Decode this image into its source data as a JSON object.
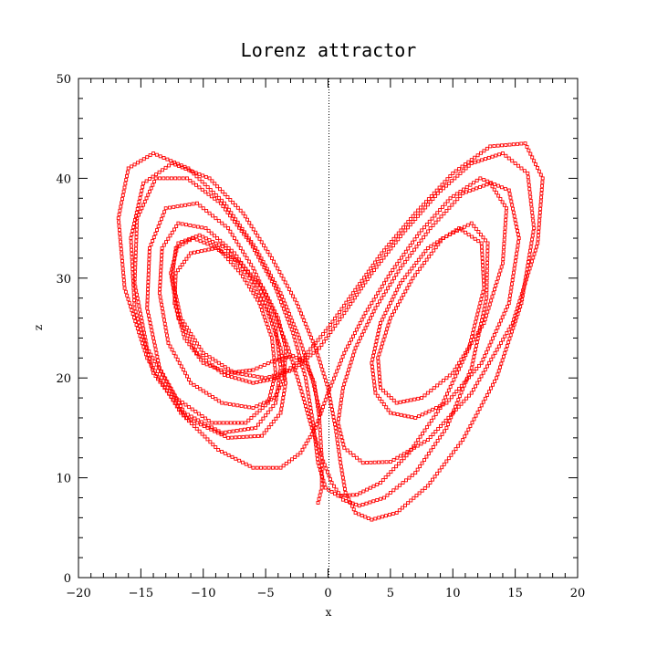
{
  "chart_data": {
    "type": "scatter",
    "title": "Lorenz attractor",
    "xlabel": "x",
    "ylabel": "z",
    "xlim": [
      -20,
      20
    ],
    "ylim": [
      0,
      50
    ],
    "xticks": [
      -20,
      -15,
      -10,
      -5,
      0,
      5,
      10,
      15,
      20
    ],
    "yticks": [
      0,
      10,
      20,
      30,
      40,
      50
    ],
    "xtick_labels": [
      "−20",
      "−15",
      "−10",
      "−5",
      "0",
      "5",
      "10",
      "15",
      "20"
    ],
    "ytick_labels": [
      "0",
      "10",
      "20",
      "30",
      "40",
      "50"
    ],
    "reference_line": {
      "x": 0,
      "style": "dotted"
    },
    "marker": "open-square",
    "color": "#ff0000",
    "grid": false,
    "series": [
      {
        "points": [
          [
            -0.8,
            7.5
          ],
          [
            -0.5,
            9
          ],
          [
            -0.5,
            12
          ],
          [
            -0.7,
            16
          ],
          [
            -1.1,
            19.5
          ],
          [
            -1.8,
            21.5
          ],
          [
            -2.8,
            22.2
          ],
          [
            -4.2,
            21.8
          ],
          [
            -6,
            20.8
          ],
          [
            -8,
            20.5
          ],
          [
            -10,
            21.5
          ],
          [
            -11.5,
            24
          ],
          [
            -12.3,
            27.5
          ],
          [
            -12.2,
            30.5
          ],
          [
            -11,
            32.5
          ],
          [
            -9,
            33
          ],
          [
            -7,
            31.5
          ],
          [
            -5.2,
            29
          ],
          [
            -4,
            26
          ],
          [
            -3.4,
            23
          ],
          [
            -3.5,
            20
          ],
          [
            -4.3,
            18
          ],
          [
            -6,
            17
          ],
          [
            -8.5,
            17.5
          ],
          [
            -11,
            19.5
          ],
          [
            -12.8,
            23.5
          ],
          [
            -13.5,
            28.5
          ],
          [
            -13.3,
            33
          ],
          [
            -12,
            35.5
          ],
          [
            -9.8,
            35
          ],
          [
            -7.5,
            32.5
          ],
          [
            -5.5,
            29
          ],
          [
            -4.2,
            25
          ],
          [
            -3.8,
            21
          ],
          [
            -4.2,
            17.5
          ],
          [
            -5.8,
            15
          ],
          [
            -8.5,
            14.5
          ],
          [
            -11.5,
            16.5
          ],
          [
            -13.5,
            21
          ],
          [
            -14.5,
            27
          ],
          [
            -14.3,
            33
          ],
          [
            -13,
            37
          ],
          [
            -10.5,
            37.5
          ],
          [
            -8,
            35
          ],
          [
            -6,
            31
          ],
          [
            -4.5,
            27
          ],
          [
            -3.2,
            23
          ],
          [
            -2.2,
            19
          ],
          [
            -1.3,
            15
          ],
          [
            -0.5,
            12
          ],
          [
            0.3,
            9.5
          ],
          [
            1.2,
            7.8
          ],
          [
            2.5,
            7.2
          ],
          [
            4.5,
            8
          ],
          [
            7,
            10.5
          ],
          [
            9.5,
            15
          ],
          [
            11.5,
            21
          ],
          [
            12.7,
            28
          ],
          [
            12.8,
            33.5
          ],
          [
            11.5,
            35.5
          ],
          [
            9.2,
            34
          ],
          [
            6.8,
            30
          ],
          [
            5,
            26
          ],
          [
            4,
            22
          ],
          [
            4.2,
            19
          ],
          [
            5.5,
            17.5
          ],
          [
            7.5,
            18
          ],
          [
            10,
            20.5
          ],
          [
            12.5,
            25.5
          ],
          [
            14,
            31.5
          ],
          [
            14.3,
            37
          ],
          [
            13,
            39.5
          ],
          [
            10.8,
            38.5
          ],
          [
            8.2,
            35
          ],
          [
            5.8,
            31
          ],
          [
            3.8,
            27
          ],
          [
            2.2,
            23
          ],
          [
            1.2,
            19
          ],
          [
            0.8,
            15.5
          ],
          [
            1.3,
            13
          ],
          [
            2.8,
            11.5
          ],
          [
            5,
            11.6
          ],
          [
            8,
            13.8
          ],
          [
            11.5,
            18.5
          ],
          [
            14.8,
            25.5
          ],
          [
            16.8,
            33.5
          ],
          [
            17.2,
            40
          ],
          [
            15.8,
            43.5
          ],
          [
            13,
            43.2
          ],
          [
            10,
            40.5
          ],
          [
            7,
            36.5
          ],
          [
            4.3,
            32.5
          ],
          [
            2,
            28.5
          ],
          [
            0,
            25
          ],
          [
            -2,
            22
          ],
          [
            -4,
            20
          ],
          [
            -6,
            19.5
          ],
          [
            -8.3,
            20.3
          ],
          [
            -10.5,
            22.5
          ],
          [
            -12,
            26
          ],
          [
            -12.6,
            30.5
          ],
          [
            -12,
            33.5
          ],
          [
            -10.3,
            34.3
          ],
          [
            -8.2,
            33
          ],
          [
            -6.3,
            30
          ],
          [
            -4.8,
            26.5
          ],
          [
            -3.8,
            23
          ],
          [
            -3.4,
            19.5
          ],
          [
            -3.8,
            16.5
          ],
          [
            -5.3,
            14.2
          ],
          [
            -8,
            14
          ],
          [
            -11.3,
            16
          ],
          [
            -14,
            20.5
          ],
          [
            -15.5,
            27
          ],
          [
            -15.8,
            34
          ],
          [
            -14.8,
            39.5
          ],
          [
            -12.5,
            41.5
          ],
          [
            -9.5,
            40
          ],
          [
            -6.8,
            36.5
          ],
          [
            -4.5,
            32
          ],
          [
            -2.5,
            27.5
          ],
          [
            -1,
            23
          ],
          [
            0,
            19
          ],
          [
            0.6,
            15
          ],
          [
            1,
            11.5
          ],
          [
            1.4,
            8.5
          ],
          [
            2.2,
            6.5
          ],
          [
            3.5,
            5.8
          ],
          [
            5.5,
            6.5
          ],
          [
            8,
            9.2
          ],
          [
            10.8,
            13.8
          ],
          [
            13.5,
            20
          ],
          [
            15.5,
            27.5
          ],
          [
            16.5,
            35
          ],
          [
            16,
            40.5
          ],
          [
            14,
            42.5
          ],
          [
            11.5,
            41.5
          ],
          [
            8.8,
            38.5
          ],
          [
            6,
            34.5
          ],
          [
            3.5,
            30.5
          ],
          [
            1.3,
            26.5
          ],
          [
            -0.7,
            23
          ],
          [
            -2.8,
            20.8
          ],
          [
            -5,
            20
          ],
          [
            -7.5,
            20.5
          ],
          [
            -10,
            22.5
          ],
          [
            -11.8,
            26
          ],
          [
            -12.5,
            30
          ],
          [
            -12.2,
            33
          ],
          [
            -10.8,
            34
          ],
          [
            -8.8,
            33
          ],
          [
            -7,
            30.5
          ],
          [
            -5.5,
            27.5
          ],
          [
            -4.5,
            24
          ],
          [
            -4.2,
            20.5
          ],
          [
            -4.8,
            17.5
          ],
          [
            -6.6,
            15.5
          ],
          [
            -9.3,
            15.5
          ],
          [
            -12.2,
            18
          ],
          [
            -14.5,
            23
          ],
          [
            -15.5,
            29.5
          ],
          [
            -15.3,
            36
          ],
          [
            -13.8,
            40
          ],
          [
            -11.3,
            40
          ],
          [
            -8.6,
            37.5
          ],
          [
            -6.2,
            33.5
          ],
          [
            -4.2,
            29
          ],
          [
            -2.8,
            24.5
          ],
          [
            -1.8,
            20
          ],
          [
            -1.2,
            15.5
          ],
          [
            -0.8,
            11.5
          ],
          [
            -0.2,
            9
          ],
          [
            0.8,
            8.2
          ],
          [
            2.3,
            8.3
          ],
          [
            4.2,
            9.5
          ],
          [
            6.5,
            12.5
          ],
          [
            9,
            17
          ],
          [
            11.3,
            23
          ],
          [
            12.5,
            29
          ],
          [
            12.3,
            33.5
          ],
          [
            10.5,
            35
          ],
          [
            8,
            33
          ],
          [
            5.8,
            29.5
          ],
          [
            4.2,
            25.5
          ],
          [
            3.5,
            21.5
          ],
          [
            3.8,
            18.5
          ],
          [
            5,
            16.5
          ],
          [
            7,
            16
          ],
          [
            9.5,
            17.5
          ],
          [
            12.3,
            21.5
          ],
          [
            14.5,
            27.5
          ],
          [
            15.3,
            34
          ],
          [
            14.5,
            38.8
          ],
          [
            12.2,
            40
          ],
          [
            9.8,
            38
          ],
          [
            7.3,
            34.5
          ],
          [
            5,
            30.5
          ],
          [
            3,
            26.5
          ],
          [
            1.3,
            22.5
          ],
          [
            0,
            18.5
          ],
          [
            -1,
            15
          ],
          [
            -2.2,
            12.5
          ],
          [
            -3.8,
            11
          ],
          [
            -6,
            11
          ],
          [
            -8.8,
            12.8
          ],
          [
            -11.8,
            16.5
          ],
          [
            -14.5,
            22
          ],
          [
            -16.3,
            29
          ],
          [
            -16.8,
            36
          ],
          [
            -16,
            41
          ],
          [
            -14,
            42.5
          ],
          [
            -11.2,
            41
          ],
          [
            -8.3,
            37.5
          ],
          [
            -5.8,
            33
          ],
          [
            -3.8,
            28.5
          ],
          [
            -2.3,
            24
          ],
          [
            -1.3,
            20
          ],
          [
            -0.6,
            16.5
          ]
        ]
      }
    ]
  }
}
